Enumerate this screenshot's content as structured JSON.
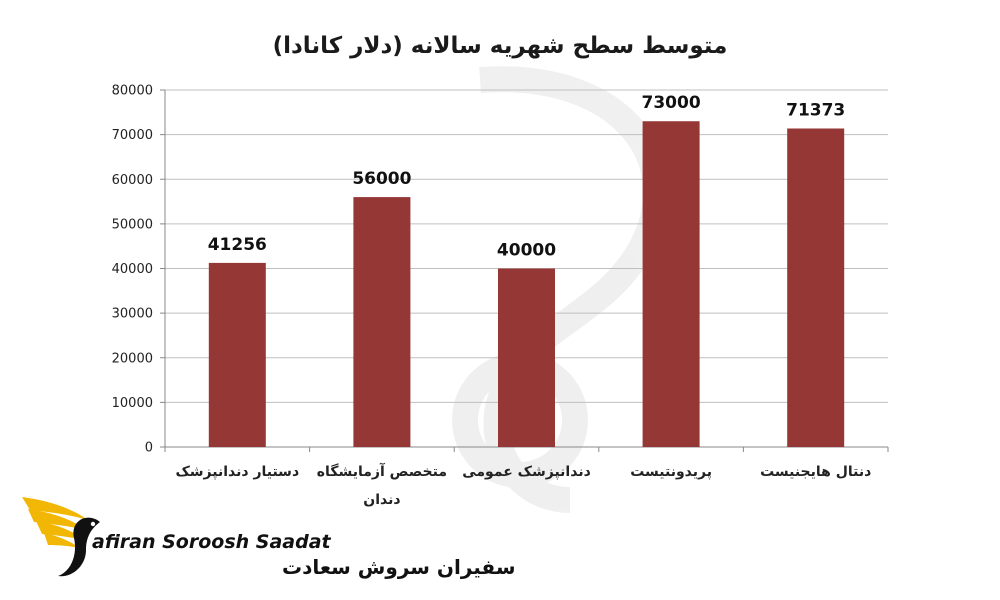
{
  "chart_data": {
    "type": "bar",
    "title": "متوسط سطح شهریه سالانه (دلار کانادا)",
    "xlabel": "",
    "ylabel": "",
    "categories": [
      [
        "دستیار دندانپزشک"
      ],
      [
        "متخصص آزمایشگاه",
        "دندان"
      ],
      [
        "دندانپزشک عمومی"
      ],
      [
        "پریدونتیست"
      ],
      [
        "دنتال هایجنیست"
      ]
    ],
    "values": [
      41256,
      56000,
      40000,
      73000,
      71373
    ],
    "data_labels": [
      "41256",
      "56000",
      "40000",
      "73000",
      "71373"
    ],
    "ylim": [
      0,
      80000
    ],
    "yticks": [
      0,
      10000,
      20000,
      30000,
      40000,
      50000,
      60000,
      70000,
      80000
    ],
    "grid": true,
    "legend": "none",
    "bar_color": "#953735"
  },
  "logo": {
    "latin": "afiran Soroosh Saadat",
    "persian": "سفیران سروش سعادت",
    "accent_color": "#f2b705"
  }
}
